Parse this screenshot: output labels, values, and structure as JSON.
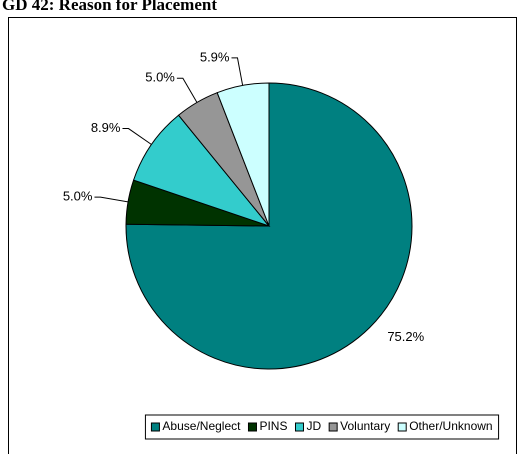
{
  "chart_data": {
    "type": "pie",
    "title": "GD 42: Reason for Placement",
    "categories": [
      "Abuse/Neglect",
      "PINS",
      "JD",
      "Voluntary",
      "Other/Unknown"
    ],
    "values": [
      75.2,
      5.0,
      8.9,
      5.0,
      5.9
    ],
    "value_labels": [
      "75.2%",
      "5.0%",
      "8.9%",
      "5.0%",
      "5.9%"
    ],
    "colors": [
      "#008080",
      "#003300",
      "#33cccc",
      "#969696",
      "#ccffff"
    ],
    "legend": "bottom"
  }
}
